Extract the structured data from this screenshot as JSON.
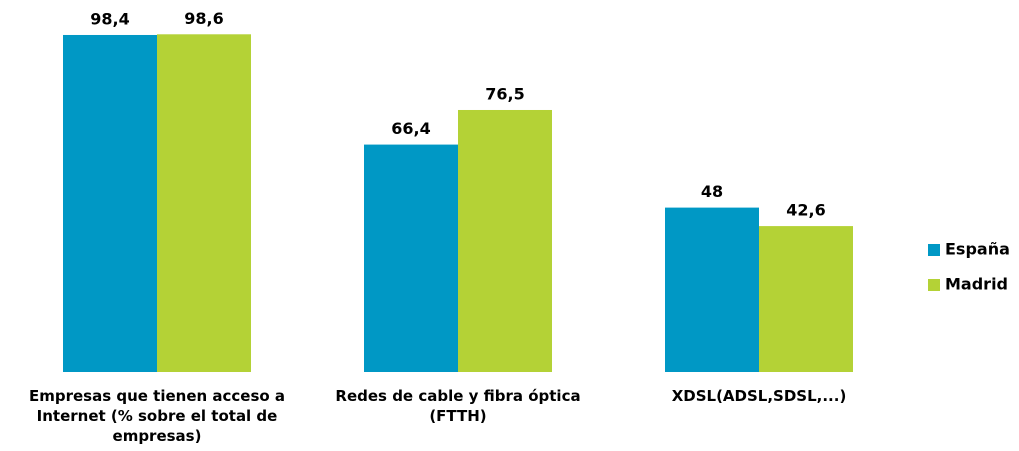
{
  "chart_data": {
    "type": "bar",
    "categories": [
      "Empresas que tienen acceso a Internet (% sobre el total de empresas)",
      "Redes de cable y fibra óptica (FTTH)",
      "XDSL(ADSL,SDSL,...)"
    ],
    "series": [
      {
        "name": "España",
        "color": "#0098c5",
        "values": [
          98.4,
          66.4,
          48
        ],
        "value_labels": [
          "98,4",
          "66,4",
          "48"
        ]
      },
      {
        "name": "Madrid",
        "color": "#b4d236",
        "values": [
          98.6,
          76.5,
          42.6
        ],
        "value_labels": [
          "98,6",
          "76,5",
          "42,6"
        ]
      }
    ],
    "ylim": [
      0,
      100
    ],
    "legend": "right"
  }
}
